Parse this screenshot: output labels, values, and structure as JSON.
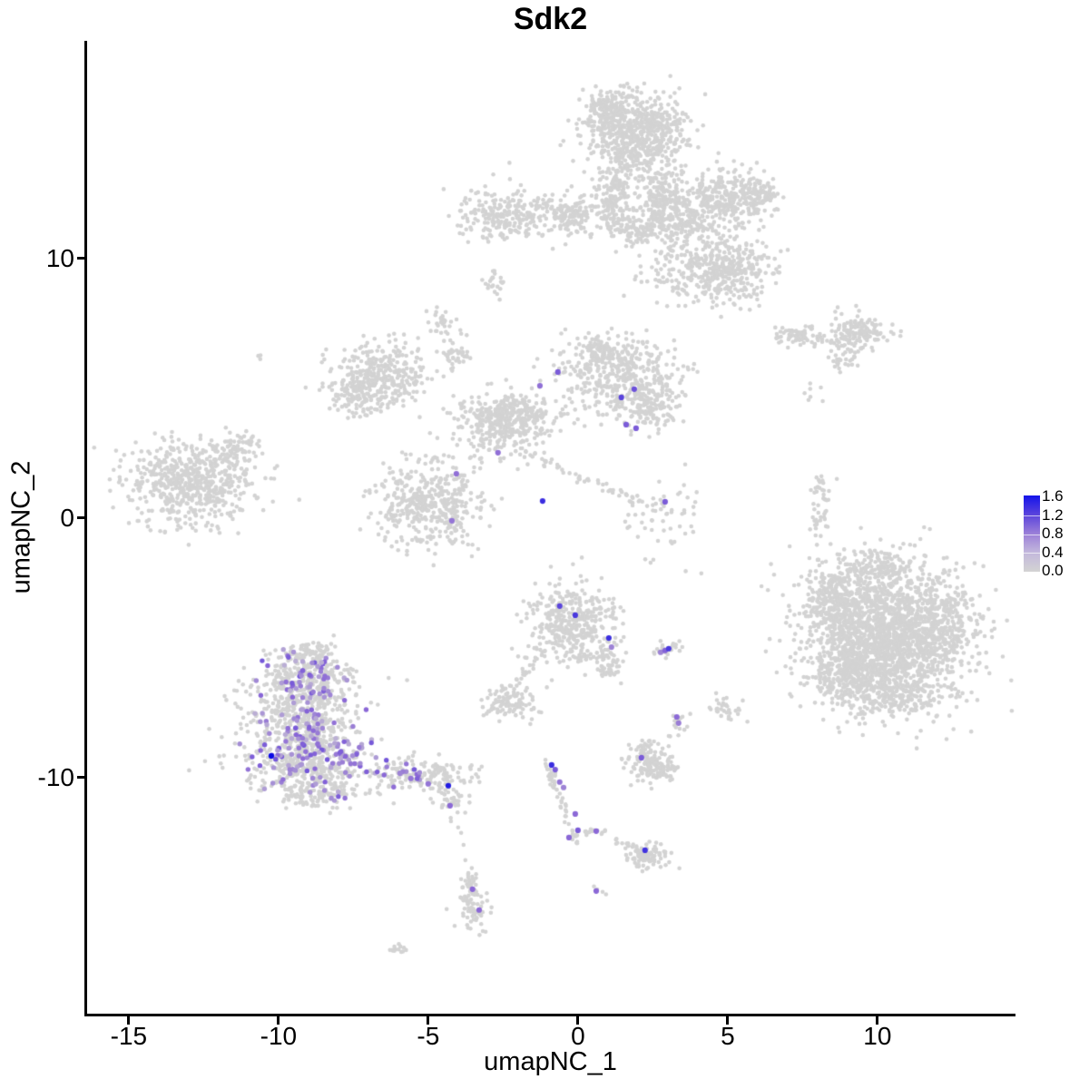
{
  "title": "Sdk2",
  "chart_data": {
    "type": "scatter",
    "title": "Sdk2",
    "subtitle": "",
    "xlabel": "umapNC_1",
    "ylabel": "umapNC_2",
    "xlim": [
      -16.42,
      14.58
    ],
    "ylim": [
      -19.13,
      18.39
    ],
    "x_ticks": [
      -15,
      -10,
      -5,
      0,
      5,
      10
    ],
    "y_ticks": [
      -10,
      0,
      10
    ],
    "grid": false,
    "point_color_base": "#D3D3D3",
    "point_color_mid": "#8B68D6",
    "point_color_high": "#0909E6",
    "legend": {
      "position": "right",
      "vmin": 0.0,
      "vmax": 1.6,
      "labels": [
        "1.6",
        "1.2",
        "0.8",
        "0.4",
        "0.0"
      ],
      "gradient": [
        "#1414EA",
        "#5A43DC",
        "#9B7FD8",
        "#C3B8DC",
        "#D3D3D3"
      ]
    },
    "gray_splats": [
      [
        1.97,
        14.79,
        1.67,
        1.57,
        700
      ],
      [
        0.94,
        15.84,
        0.73,
        0.6,
        120
      ],
      [
        1.24,
        12.34,
        0.61,
        1.1,
        160
      ],
      [
        2.79,
        12.17,
        0.67,
        1.22,
        200
      ],
      [
        1.91,
        11.08,
        0.91,
        0.56,
        110
      ],
      [
        -0.21,
        11.68,
        1.06,
        0.77,
        140
      ],
      [
        -2.33,
        11.57,
        1.45,
        1.05,
        240
      ],
      [
        4.79,
        12.27,
        1.52,
        1.12,
        330
      ],
      [
        6.15,
        12.52,
        0.55,
        0.7,
        70
      ],
      [
        3.64,
        11.29,
        0.76,
        0.87,
        110
      ],
      [
        4.94,
        9.62,
        1.52,
        1.22,
        380
      ],
      [
        3.03,
        9.58,
        1.36,
        1.22,
        70
      ],
      [
        -2.79,
        9.02,
        0.33,
        0.52,
        22
      ],
      [
        -4.52,
        7.55,
        0.48,
        0.59,
        30
      ],
      [
        -10.58,
        6.19,
        0.12,
        0.12,
        3
      ],
      [
        -12.94,
        1.36,
        2.2,
        1.7,
        600
      ],
      [
        -11.3,
        2.65,
        0.75,
        0.5,
        50
      ],
      [
        -6.58,
        5.45,
        1.55,
        1.15,
        330
      ],
      [
        -7.42,
        4.65,
        0.85,
        0.8,
        90
      ],
      [
        1.3,
        5.5,
        2.0,
        1.45,
        420
      ],
      [
        2.42,
        4.3,
        0.85,
        0.87,
        120
      ],
      [
        0.79,
        6.5,
        0.6,
        0.45,
        70
      ],
      [
        -2.03,
        4.06,
        1.5,
        0.6,
        140
      ],
      [
        -2.48,
        3.53,
        1.55,
        1.25,
        300
      ],
      [
        -4.15,
        6.33,
        0.4,
        0.55,
        40
      ],
      [
        -5.0,
        0.56,
        1.85,
        1.65,
        440
      ],
      [
        2.91,
        0.03,
        1.15,
        1.6,
        55
      ],
      [
        7.82,
        4.93,
        0.3,
        0.38,
        6
      ],
      [
        7.36,
        7.03,
        0.85,
        0.5,
        70
      ],
      [
        9.33,
        7.08,
        0.95,
        0.72,
        150
      ],
      [
        8.82,
        6.12,
        0.38,
        0.38,
        25
      ],
      [
        8.12,
        1.08,
        0.38,
        0.55,
        22
      ],
      [
        8.06,
        -0.03,
        0.32,
        0.6,
        22
      ],
      [
        10.3,
        -4.5,
        2.65,
        2.75,
        2000
      ],
      [
        8.58,
        -3.11,
        0.9,
        0.95,
        160
      ],
      [
        8.88,
        -5.91,
        0.95,
        1.15,
        160
      ],
      [
        8.15,
        -2.3,
        0.6,
        0.85,
        14
      ],
      [
        10.0,
        -1.9,
        1.3,
        0.6,
        120
      ],
      [
        12.0,
        -4.3,
        1.2,
        1.5,
        200
      ],
      [
        10.5,
        -6.8,
        1.5,
        0.8,
        150
      ],
      [
        -0.15,
        -4.09,
        1.45,
        1.7,
        400
      ],
      [
        0.94,
        -5.56,
        0.45,
        0.65,
        45
      ],
      [
        -2.27,
        -7.03,
        0.85,
        0.72,
        100
      ],
      [
        2.97,
        -5.14,
        0.55,
        0.3,
        26
      ],
      [
        4.94,
        -7.38,
        0.5,
        0.42,
        32
      ],
      [
        3.33,
        -7.9,
        0.3,
        0.5,
        18
      ],
      [
        2.52,
        -9.58,
        0.9,
        0.65,
        130
      ],
      [
        2.3,
        -8.9,
        0.4,
        0.4,
        30
      ],
      [
        -8.85,
        -5.1,
        0.8,
        0.45,
        55
      ],
      [
        -9.0,
        -6.19,
        1.55,
        1.15,
        260
      ],
      [
        -9.3,
        -7.94,
        2.0,
        1.6,
        430
      ],
      [
        -9.0,
        -9.62,
        2.15,
        1.1,
        300
      ],
      [
        -5.21,
        -9.93,
        1.7,
        0.72,
        170
      ],
      [
        -8.7,
        -10.73,
        1.55,
        0.5,
        80
      ],
      [
        -4.21,
        -10.9,
        0.55,
        0.5,
        30
      ],
      [
        2.36,
        -13.04,
        0.8,
        0.5,
        85
      ],
      [
        0.64,
        -14.41,
        0.2,
        0.22,
        5
      ],
      [
        -3.48,
        -14.83,
        0.55,
        1.15,
        80
      ],
      [
        -3.7,
        -13.9,
        0.3,
        0.35,
        15
      ],
      [
        -6.0,
        -16.54,
        0.32,
        0.27,
        14
      ]
    ],
    "gray_lines": [
      [
        -2.18,
        2.66,
        2.21,
        0.56,
        6,
        55
      ],
      [
        -1.0,
        -5.0,
        -2.1,
        -6.5,
        5,
        22
      ],
      [
        -1.06,
        -9.41,
        -0.27,
        -11.89,
        5,
        40
      ],
      [
        -0.2,
        -12.0,
        0.0,
        -12.6,
        4,
        12
      ],
      [
        0.2,
        -12.07,
        0.94,
        -12.1,
        4,
        14
      ],
      [
        1.24,
        -12.35,
        1.97,
        -12.8,
        4,
        12
      ]
    ],
    "gray_singles": [
      [
        -4.24,
        -11.68
      ],
      [
        -4.0,
        -11.92
      ],
      [
        -3.9,
        -12.13
      ],
      [
        -3.82,
        -12.59
      ],
      [
        -3.76,
        -13.18
      ],
      [
        4.12,
        -2.13
      ],
      [
        7.98,
        -1.03
      ],
      [
        8.06,
        -1.82
      ],
      [
        3.36,
        8.18
      ],
      [
        2.64,
        8.3
      ],
      [
        7.7,
        4.55
      ]
    ],
    "expression_field_splats": [
      [
        -8.9,
        -6.1,
        1.35,
        1.0,
        42
      ],
      [
        -9.3,
        -7.9,
        1.8,
        1.35,
        72
      ],
      [
        -9.0,
        -9.45,
        1.9,
        0.95,
        52
      ],
      [
        -5.9,
        -9.9,
        1.25,
        0.5,
        12
      ],
      [
        -7.5,
        -8.9,
        1.3,
        0.85,
        26
      ],
      [
        -8.7,
        -10.6,
        1.2,
        0.4,
        9
      ],
      [
        -8.85,
        -5.6,
        0.6,
        0.5,
        8
      ]
    ],
    "expression_field_range": [
      0.25,
      0.95
    ],
    "expression_points": [
      [
        -0.67,
        5.63,
        0.9
      ],
      [
        -1.27,
        5.1,
        0.75
      ],
      [
        1.88,
        4.97,
        1.0
      ],
      [
        1.45,
        4.65,
        1.1
      ],
      [
        1.61,
        3.6,
        0.9
      ],
      [
        1.94,
        3.46,
        0.9
      ],
      [
        -2.67,
        2.52,
        0.75
      ],
      [
        -4.06,
        1.71,
        0.75
      ],
      [
        -1.18,
        0.66,
        1.3
      ],
      [
        -4.21,
        -0.1,
        0.7
      ],
      [
        2.91,
        0.63,
        0.9
      ],
      [
        -0.61,
        -3.39,
        1.1
      ],
      [
        -0.09,
        -3.74,
        1.2
      ],
      [
        1.03,
        -4.62,
        1.3
      ],
      [
        1.12,
        -4.97,
        0.6
      ],
      [
        2.76,
        -5.17,
        0.6
      ],
      [
        2.91,
        -5.1,
        0.85
      ],
      [
        3.03,
        -5.03,
        1.2
      ],
      [
        3.3,
        -7.66,
        0.8
      ],
      [
        3.36,
        -7.9,
        0.65
      ],
      [
        2.12,
        -9.23,
        0.9
      ],
      [
        -0.88,
        -9.51,
        1.3
      ],
      [
        -0.76,
        -9.69,
        0.9
      ],
      [
        -0.61,
        -10.17,
        0.7
      ],
      [
        -0.48,
        -10.38,
        0.6
      ],
      [
        -0.09,
        -11.4,
        0.8
      ],
      [
        0.0,
        -12.03,
        0.9
      ],
      [
        -0.3,
        -12.31,
        0.8
      ],
      [
        0.61,
        -12.06,
        0.8
      ],
      [
        2.24,
        -12.8,
        1.25
      ],
      [
        0.61,
        -14.37,
        0.8
      ],
      [
        -3.52,
        -14.3,
        0.8
      ],
      [
        -3.3,
        -15.1,
        0.8
      ],
      [
        -4.27,
        -11.08,
        0.8
      ],
      [
        -4.33,
        -10.31,
        1.45
      ],
      [
        -5.0,
        -10.24,
        0.7
      ],
      [
        -5.58,
        -10.03,
        0.7
      ],
      [
        -5.94,
        -9.83,
        0.6
      ],
      [
        -10.24,
        -9.16,
        1.6
      ]
    ]
  }
}
